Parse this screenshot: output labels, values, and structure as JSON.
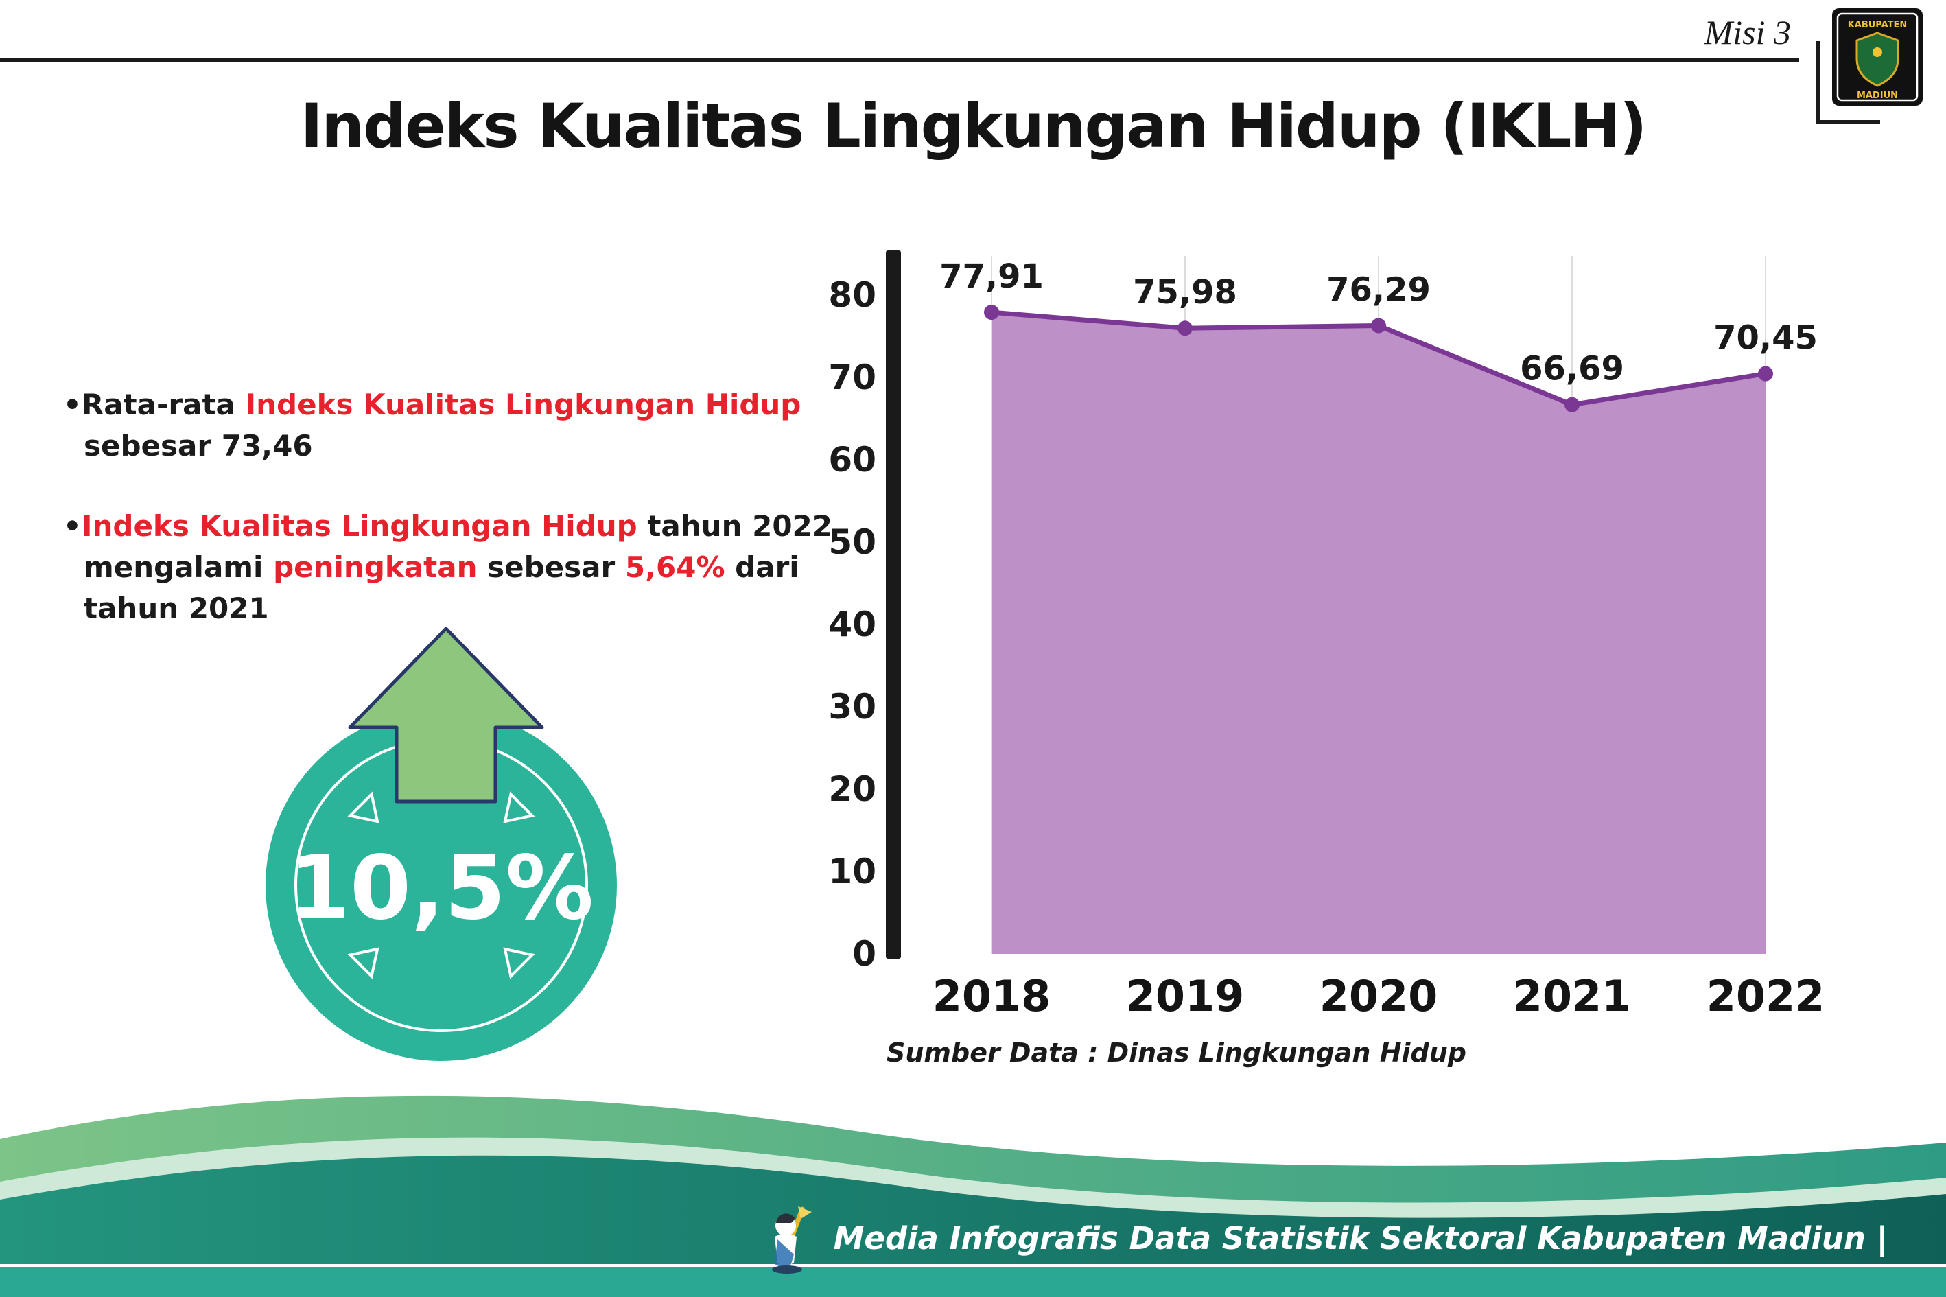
{
  "header": {
    "misi_label": "Misi 3",
    "title": "Indeks Kualitas Lingkungan Hidup (IKLH)",
    "logo": {
      "line1": "KABUPATEN",
      "line2": "MADIUN"
    }
  },
  "insights": {
    "bullet_marker": "•",
    "bullet1": {
      "seg1": "Rata-rata ",
      "seg2": "Indeks Kualitas Lingkungan Hidup",
      "seg3": " sebesar 73,46"
    },
    "bullet2": {
      "seg1": "Indeks Kualitas Lingkungan Hidup",
      "seg2": " tahun 2022 mengalami ",
      "seg3": "peningkatan",
      "seg4": " sebesar ",
      "seg5": "5,64%",
      "seg6": " dari tahun 2021"
    },
    "badge_value": "10,5%"
  },
  "chart_data": {
    "type": "area",
    "title": "Indeks Kualitas Lingkungan Hidup (IKLH)",
    "categories": [
      "2018",
      "2019",
      "2020",
      "2021",
      "2022"
    ],
    "values": [
      77.91,
      75.98,
      76.29,
      66.69,
      70.45
    ],
    "point_labels": [
      "77,91",
      "75,98",
      "76,29",
      "66,69",
      "70,45"
    ],
    "xlabel": "",
    "ylabel": "",
    "ylim": [
      0,
      80
    ],
    "yticks": [
      0,
      10,
      20,
      30,
      40,
      50,
      60,
      70,
      80
    ],
    "grid": "vertical-light",
    "legend": "none",
    "source": "Sumber Data : Dinas Lingkungan Hidup",
    "colors": {
      "line": "#7b3794",
      "fill": "#bd90c7",
      "axis": "#1a1a1a"
    }
  },
  "footer": {
    "caption": "Media Infografis Data Statistik Sektoral Kabupaten Madiun |"
  },
  "colors": {
    "accent_red": "#e8222d",
    "badge_teal": "#2bb49a",
    "arrow_green": "#8dc77e",
    "footer_strip": "#2aa893"
  }
}
